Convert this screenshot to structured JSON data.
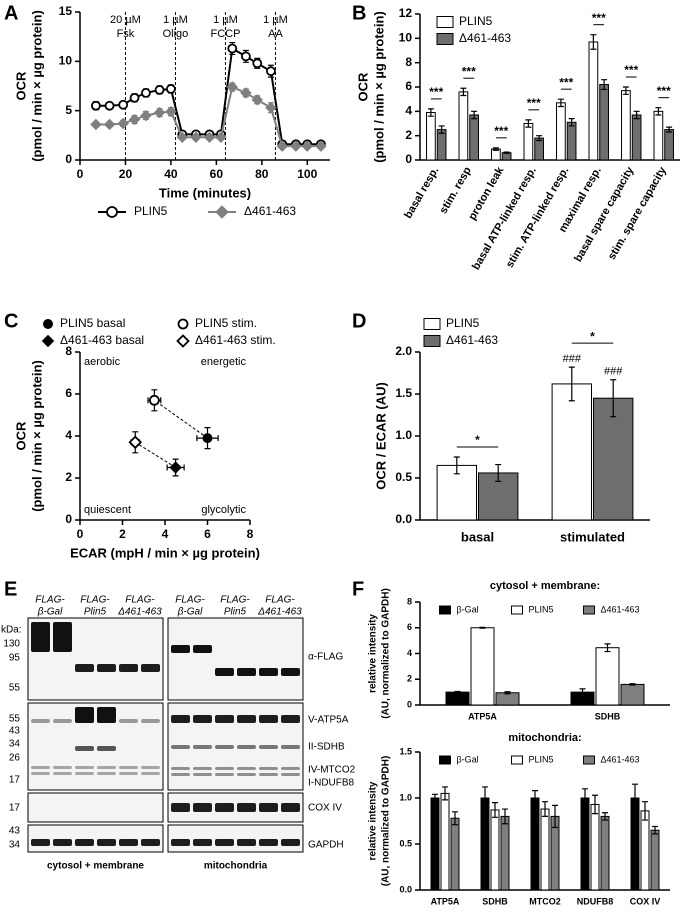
{
  "chart_data": [
    {
      "type": "line",
      "label": "A",
      "x": [
        7,
        13,
        19,
        24,
        29,
        35,
        40,
        45,
        51,
        57,
        62,
        67,
        73,
        78,
        84,
        89,
        95,
        100,
        106
      ],
      "series": [
        {
          "name": "PLIN5",
          "color": "#000000",
          "marker": "circle-open",
          "values": [
            5.5,
            5.5,
            5.6,
            6.3,
            6.8,
            7.1,
            7.2,
            2.6,
            2.6,
            2.6,
            2.6,
            11.3,
            10.5,
            9.8,
            9.0,
            1.6,
            1.6,
            1.6,
            1.6
          ],
          "errors": [
            0.4,
            0.3,
            0.3,
            0.4,
            0.4,
            0.4,
            0.4,
            0.3,
            0.2,
            0.2,
            0.2,
            0.6,
            0.6,
            0.5,
            0.6,
            0.2,
            0.2,
            0.2,
            0.2
          ]
        },
        {
          "name": "Δ461-463",
          "color": "#7f7f7f",
          "marker": "diamond",
          "values": [
            3.6,
            3.6,
            3.7,
            4.1,
            4.5,
            4.8,
            4.9,
            2.3,
            2.3,
            2.3,
            2.3,
            7.4,
            6.8,
            6.1,
            5.3,
            1.4,
            1.4,
            1.4,
            1.4
          ],
          "errors": [
            0.2,
            0.2,
            0.3,
            0.4,
            0.4,
            0.4,
            0.4,
            0.2,
            0.2,
            0.2,
            0.2,
            0.4,
            0.4,
            0.4,
            0.5,
            0.1,
            0.1,
            0.1,
            0.1
          ]
        }
      ],
      "injections": [
        {
          "x": 20,
          "label": [
            "20 µM",
            "Fsk"
          ]
        },
        {
          "x": 42,
          "label": [
            "1 µM",
            "Oligo"
          ]
        },
        {
          "x": 64,
          "label": [
            "1 µM",
            "FCCP"
          ]
        },
        {
          "x": 86,
          "label": [
            "1 µM",
            "AA"
          ]
        }
      ],
      "xlim": [
        0,
        110
      ],
      "xticks": [
        0,
        20,
        40,
        60,
        80,
        100
      ],
      "ylim": [
        0,
        15
      ],
      "yticks": [
        0,
        5,
        10,
        15
      ],
      "xlabel": "Time (minutes)",
      "ylabel": [
        "OCR",
        "(pmol / min × µg protein)"
      ],
      "legend": "bottom"
    },
    {
      "type": "bar",
      "label": "B",
      "categories": [
        "basal resp.",
        "stim. resp",
        "proton leak",
        "basal ATP-linked resp.",
        "stim. ATP-linked resp.",
        "maximal resp.",
        "basal spare capacity",
        "stim. spare capacity"
      ],
      "series": [
        {
          "name": "PLIN5",
          "color": "#ffffff",
          "values": [
            3.9,
            5.6,
            0.9,
            3.0,
            4.7,
            9.7,
            5.7,
            4.0
          ],
          "errors": [
            0.3,
            0.3,
            0.1,
            0.3,
            0.3,
            0.6,
            0.3,
            0.3
          ]
        },
        {
          "name": "Δ461-463",
          "color": "#6e6e6e",
          "values": [
            2.5,
            3.7,
            0.6,
            1.8,
            3.1,
            6.2,
            3.7,
            2.5
          ],
          "errors": [
            0.3,
            0.3,
            0.05,
            0.2,
            0.3,
            0.4,
            0.3,
            0.2
          ]
        }
      ],
      "significance": [
        "***",
        "***",
        "***",
        "***",
        "***",
        "***",
        "***",
        "***"
      ],
      "edgecolor": "#000000",
      "ylim": [
        0,
        12
      ],
      "yticks": [
        0,
        2,
        4,
        6,
        8,
        10,
        12
      ],
      "ylabel": [
        "OCR",
        "(pmol / min × µg protein)"
      ],
      "legend": "upper left"
    },
    {
      "type": "scatter",
      "label": "C",
      "series": [
        {
          "name": "PLIN5 basal",
          "marker": "circle",
          "color": "#000000",
          "x": [
            6.0
          ],
          "values": [
            3.9
          ],
          "xerr": [
            0.5
          ],
          "errors": [
            0.5
          ]
        },
        {
          "name": "PLIN5 stim.",
          "marker": "circle-open",
          "color": "#000000",
          "x": [
            3.5
          ],
          "values": [
            5.7
          ],
          "xerr": [
            0.3
          ],
          "errors": [
            0.5
          ]
        },
        {
          "name": "Δ461-463 basal",
          "marker": "diamond",
          "color": "#000000",
          "x": [
            4.5
          ],
          "values": [
            2.5
          ],
          "xerr": [
            0.4
          ],
          "errors": [
            0.4
          ]
        },
        {
          "name": "Δ461-463 stim.",
          "marker": "diamond-open",
          "color": "#000000",
          "x": [
            2.6
          ],
          "values": [
            3.7
          ],
          "xerr": [
            0.2
          ],
          "errors": [
            0.5
          ]
        }
      ],
      "connectors": "dashed",
      "quadrant_labels": {
        "top_left": "aerobic",
        "top_right": "energetic",
        "bottom_left": "quiescent",
        "bottom_right": "glycolytic"
      },
      "xlim": [
        0,
        8
      ],
      "xticks": [
        0,
        2,
        4,
        6,
        8
      ],
      "ylim": [
        0,
        8
      ],
      "yticks": [
        0,
        2,
        4,
        6,
        8
      ],
      "xlabel": "ECAR (mpH / min × µg protein)",
      "ylabel": [
        "OCR",
        "(pmol / min × µg protein)"
      ],
      "legend": "top"
    },
    {
      "type": "bar",
      "label": "D",
      "categories": [
        "basal",
        "stimulated"
      ],
      "series": [
        {
          "name": "PLIN5",
          "color": "#ffffff",
          "values": [
            0.65,
            1.62
          ],
          "errors": [
            0.1,
            0.2
          ],
          "annotations": [
            null,
            "###"
          ]
        },
        {
          "name": "Δ461-463",
          "color": "#6e6e6e",
          "values": [
            0.56,
            1.45
          ],
          "errors": [
            0.1,
            0.22
          ],
          "annotations": [
            null,
            "###"
          ]
        }
      ],
      "significance": [
        "*",
        "*"
      ],
      "edgecolor": "#000000",
      "ylim": [
        0,
        2
      ],
      "yticks": [
        {
          "value": 0,
          "label": "0.0"
        },
        0.5,
        {
          "value": 1,
          "label": "1.0"
        },
        1.5,
        {
          "value": 2,
          "label": "2.0"
        }
      ],
      "ylabel": [
        "OCR / ECAR (AU)"
      ],
      "legend": "top"
    },
    {
      "type": "bar",
      "label": "F",
      "title": "cytosol + membrane:",
      "categories": [
        "ATP5A",
        "SDHB"
      ],
      "series": [
        {
          "name": "β-Gal",
          "color": "#000000",
          "values": [
            1.0,
            1.0
          ],
          "errors": [
            0.05,
            0.25
          ]
        },
        {
          "name": "PLIN5",
          "color": "#ffffff",
          "values": [
            6.0,
            4.45
          ],
          "errors": [
            0.03,
            0.3
          ]
        },
        {
          "name": "Δ461-463",
          "color": "#7f7f7f",
          "values": [
            0.95,
            1.6
          ],
          "errors": [
            0.08,
            0.05
          ]
        }
      ],
      "edgecolor": "#000000",
      "ylim": [
        0,
        8
      ],
      "yticks": [
        0,
        2,
        4,
        6,
        8
      ],
      "ylabel": [
        "relative intensity",
        "(AU, normalized to GAPDH)"
      ],
      "legend": "upper left"
    },
    {
      "type": "bar",
      "title": "mitochondria:",
      "categories": [
        "ATP5A",
        "SDHB",
        "MTCO2",
        "NDUFB8",
        "COX IV"
      ],
      "series": [
        {
          "name": "β-Gal",
          "color": "#000000",
          "values": [
            1.0,
            1.0,
            1.0,
            1.0,
            1.0
          ],
          "errors": [
            0.04,
            0.12,
            0.08,
            0.1,
            0.15
          ]
        },
        {
          "name": "PLIN5",
          "color": "#ffffff",
          "values": [
            1.05,
            0.87,
            0.88,
            0.93,
            0.86
          ],
          "errors": [
            0.07,
            0.08,
            0.08,
            0.1,
            0.1
          ]
        },
        {
          "name": "Δ461-463",
          "color": "#7f7f7f",
          "values": [
            0.78,
            0.8,
            0.8,
            0.8,
            0.65
          ],
          "errors": [
            0.07,
            0.08,
            0.12,
            0.04,
            0.04
          ]
        }
      ],
      "edgecolor": "#000000",
      "ylim": [
        0,
        1.5
      ],
      "yticks": [
        {
          "value": 0,
          "label": "0.0"
        },
        0.5,
        {
          "value": 1,
          "label": "1.0"
        },
        1.5
      ],
      "ylabel": [
        "relative intensity",
        "(AU, normalized to GAPDH)"
      ],
      "legend": "upper left"
    }
  ],
  "blot": {
    "label": "E",
    "kda": "kDa:",
    "lanes": [
      [
        "FLAG-",
        "β-Gal"
      ],
      [
        "FLAG-",
        "Plin5"
      ],
      [
        "FLAG-",
        "Δ461-463"
      ]
    ],
    "markers": [
      130,
      95,
      55,
      55,
      43,
      34,
      26,
      17,
      17,
      43,
      34
    ],
    "bands": [
      "α-FLAG",
      "V-ATP5A",
      "II-SDHB",
      "IV-MTCO2",
      "I-NDUFB8",
      "COX IV",
      "GAPDH"
    ],
    "fractions": [
      "cytosol + membrane",
      "mitochondria"
    ]
  }
}
